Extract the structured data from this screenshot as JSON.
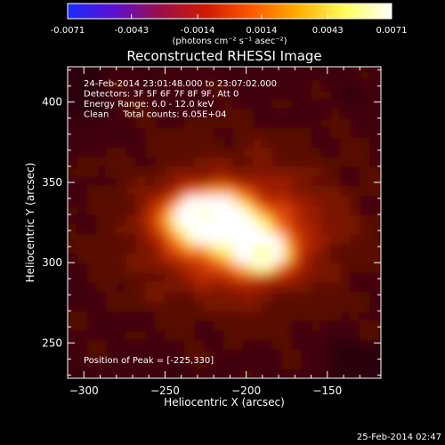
{
  "colorbar": {
    "ticks": [
      "-0.0071",
      "-0.0043",
      "-0.0014",
      "0.0014",
      "0.0043",
      "0.0071"
    ],
    "tick_values": [
      -0.0071,
      -0.0043,
      -0.0014,
      0.0014,
      0.0043,
      0.0071
    ],
    "range": [
      -0.0071,
      0.0071
    ],
    "units_label": "(photons cm⁻² s⁻¹ asec⁻²)",
    "colors": [
      "#1a2cff",
      "#5b0fd0",
      "#9a0f4a",
      "#d11a00",
      "#ff5a00",
      "#ffb000",
      "#ffff60",
      "#ffffff"
    ]
  },
  "chart_data": {
    "type": "heatmap",
    "title": "Reconstructed RHESSI Image",
    "xlabel": "Heliocentric X (arcsec)",
    "ylabel": "Heliocentric Y (arcsec)",
    "xlim": [
      -310,
      -117
    ],
    "ylim": [
      228,
      422
    ],
    "xticks": [
      -300,
      -250,
      -200,
      -150
    ],
    "yticks": [
      250,
      300,
      350,
      400
    ],
    "xtick_labels": [
      "−300",
      "−250",
      "−200",
      "−150"
    ],
    "ytick_labels": [
      "250",
      "300",
      "350",
      "400"
    ],
    "info_lines": [
      "24-Feb-2014 23:01:48.000 to 23:07:02.000",
      "Detectors: 3F 5F 6F 7F 8F 9F, Att 0",
      "Energy Range: 6.0 - 12.0 keV",
      "Clean     Total counts: 6.05E+04"
    ],
    "peak_label": "Position of Peak = [-225,330]",
    "peak": [
      -225,
      330
    ],
    "sources": [
      {
        "x": -226,
        "y": 330,
        "peak": 0.0071
      },
      {
        "x": -190,
        "y": 306,
        "peak": 0.0058
      }
    ]
  },
  "footer": {
    "timestamp": "25-Feb-2014 02:47"
  }
}
